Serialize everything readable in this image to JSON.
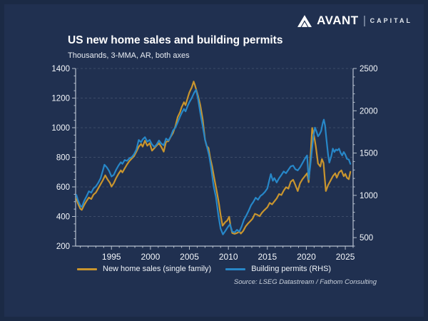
{
  "brand": {
    "name": "AVANT",
    "suffix": "CAPITAL"
  },
  "header": {
    "title": "US new home sales and building permits",
    "subtitle": "Thousands, 3-MMA, AR, both axes"
  },
  "footer": {
    "source": "Source: LSEG Datastream / Fathom Consulting"
  },
  "colors": {
    "background": "#203050",
    "gold": "#c9952e",
    "blue": "#2787c8",
    "axis": "#b6c0ce",
    "grid": "#56647e",
    "tick_text": "#f3f6fa"
  },
  "chart_data": {
    "type": "line",
    "title": "US new home sales and building permits",
    "subtitle": "Thousands, 3-MMA, AR, both axes",
    "source_note": "Source: LSEG Datastream / Fathom Consulting",
    "grid": "horizontal-dashed",
    "legend_position": "bottom",
    "x_axis": {
      "range": [
        1990.4,
        2026.0
      ],
      "label_ticks": [
        1995,
        2000,
        2005,
        2010,
        2015,
        2020,
        2025
      ],
      "minor_tick_every": 1
    },
    "left_axis": {
      "range": [
        200,
        1400
      ],
      "ticks": [
        200,
        400,
        600,
        800,
        1000,
        1200,
        1400
      ],
      "minor_tick_every": 50
    },
    "right_axis": {
      "range": [
        400,
        2500
      ],
      "ticks": [
        500,
        1000,
        1500,
        2000,
        2500
      ],
      "minor_tick_every": 100
    },
    "series": [
      {
        "name": "New home sales (single family)",
        "axis": "left",
        "color": "#c9952e",
        "points": [
          [
            1990.5,
            520
          ],
          [
            1990.7,
            487
          ],
          [
            1991.0,
            452
          ],
          [
            1991.2,
            445
          ],
          [
            1991.5,
            478
          ],
          [
            1991.8,
            505
          ],
          [
            1992.1,
            528
          ],
          [
            1992.4,
            518
          ],
          [
            1992.7,
            548
          ],
          [
            1993.0,
            562
          ],
          [
            1993.3,
            590
          ],
          [
            1993.6,
            618
          ],
          [
            1993.9,
            645
          ],
          [
            1994.2,
            678
          ],
          [
            1994.5,
            650
          ],
          [
            1994.8,
            628
          ],
          [
            1995.0,
            602
          ],
          [
            1995.3,
            625
          ],
          [
            1995.6,
            660
          ],
          [
            1995.9,
            688
          ],
          [
            1996.2,
            712
          ],
          [
            1996.4,
            698
          ],
          [
            1996.7,
            725
          ],
          [
            1997.0,
            752
          ],
          [
            1997.3,
            775
          ],
          [
            1997.6,
            792
          ],
          [
            1997.9,
            808
          ],
          [
            1998.2,
            838
          ],
          [
            1998.5,
            872
          ],
          [
            1998.8,
            890
          ],
          [
            1999.0,
            872
          ],
          [
            1999.3,
            912
          ],
          [
            1999.6,
            878
          ],
          [
            1999.9,
            895
          ],
          [
            2000.2,
            845
          ],
          [
            2000.5,
            862
          ],
          [
            2000.8,
            880
          ],
          [
            2001.1,
            895
          ],
          [
            2001.4,
            870
          ],
          [
            2001.7,
            838
          ],
          [
            2002.0,
            905
          ],
          [
            2002.3,
            908
          ],
          [
            2002.6,
            938
          ],
          [
            2002.9,
            965
          ],
          [
            2003.2,
            1010
          ],
          [
            2003.5,
            1072
          ],
          [
            2003.8,
            1105
          ],
          [
            2004.0,
            1138
          ],
          [
            2004.3,
            1172
          ],
          [
            2004.5,
            1152
          ],
          [
            2004.8,
            1205
          ],
          [
            2005.0,
            1238
          ],
          [
            2005.3,
            1272
          ],
          [
            2005.55,
            1312
          ],
          [
            2005.7,
            1288
          ],
          [
            2005.9,
            1252
          ],
          [
            2006.1,
            1215
          ],
          [
            2006.4,
            1152
          ],
          [
            2006.7,
            1058
          ],
          [
            2007.0,
            920
          ],
          [
            2007.2,
            878
          ],
          [
            2007.45,
            862
          ],
          [
            2007.7,
            788
          ],
          [
            2007.9,
            742
          ],
          [
            2008.2,
            655
          ],
          [
            2008.5,
            572
          ],
          [
            2008.8,
            482
          ],
          [
            2009.0,
            412
          ],
          [
            2009.25,
            338
          ],
          [
            2009.6,
            362
          ],
          [
            2009.85,
            372
          ],
          [
            2010.1,
            398
          ],
          [
            2010.3,
            330
          ],
          [
            2010.5,
            288
          ],
          [
            2010.8,
            283
          ],
          [
            2011.1,
            288
          ],
          [
            2011.4,
            298
          ],
          [
            2011.6,
            285
          ],
          [
            2011.9,
            302
          ],
          [
            2012.2,
            332
          ],
          [
            2012.5,
            352
          ],
          [
            2012.8,
            368
          ],
          [
            2013.1,
            385
          ],
          [
            2013.4,
            418
          ],
          [
            2013.7,
            412
          ],
          [
            2014.0,
            402
          ],
          [
            2014.3,
            425
          ],
          [
            2014.6,
            442
          ],
          [
            2015.0,
            462
          ],
          [
            2015.3,
            492
          ],
          [
            2015.6,
            482
          ],
          [
            2015.9,
            502
          ],
          [
            2016.2,
            522
          ],
          [
            2016.5,
            552
          ],
          [
            2016.8,
            545
          ],
          [
            2017.1,
            575
          ],
          [
            2017.4,
            598
          ],
          [
            2017.7,
            588
          ],
          [
            2018.0,
            635
          ],
          [
            2018.3,
            648
          ],
          [
            2018.6,
            612
          ],
          [
            2018.9,
            572
          ],
          [
            2019.2,
            625
          ],
          [
            2019.5,
            652
          ],
          [
            2019.8,
            672
          ],
          [
            2020.1,
            692
          ],
          [
            2020.3,
            632
          ],
          [
            2020.5,
            772
          ],
          [
            2020.75,
            998
          ],
          [
            2021.0,
            942
          ],
          [
            2021.2,
            878
          ],
          [
            2021.5,
            758
          ],
          [
            2021.8,
            738
          ],
          [
            2022.0,
            788
          ],
          [
            2022.2,
            762
          ],
          [
            2022.5,
            572
          ],
          [
            2022.8,
            612
          ],
          [
            2023.1,
            642
          ],
          [
            2023.4,
            672
          ],
          [
            2023.7,
            692
          ],
          [
            2023.9,
            662
          ],
          [
            2024.2,
            698
          ],
          [
            2024.5,
            712
          ],
          [
            2024.8,
            672
          ],
          [
            2025.0,
            688
          ],
          [
            2025.2,
            662
          ],
          [
            2025.45,
            652
          ],
          [
            2025.65,
            702
          ]
        ]
      },
      {
        "name": "Building permits (RHS)",
        "axis": "right",
        "color": "#2787c8",
        "points": [
          [
            1990.5,
            1005
          ],
          [
            1990.7,
            942
          ],
          [
            1991.0,
            878
          ],
          [
            1991.2,
            862
          ],
          [
            1991.5,
            935
          ],
          [
            1991.8,
            988
          ],
          [
            1992.1,
            1048
          ],
          [
            1992.4,
            1032
          ],
          [
            1992.7,
            1082
          ],
          [
            1993.0,
            1105
          ],
          [
            1993.3,
            1148
          ],
          [
            1993.6,
            1202
          ],
          [
            1993.9,
            1295
          ],
          [
            1994.1,
            1362
          ],
          [
            1994.4,
            1332
          ],
          [
            1994.7,
            1288
          ],
          [
            1995.0,
            1222
          ],
          [
            1995.3,
            1242
          ],
          [
            1995.6,
            1302
          ],
          [
            1995.9,
            1352
          ],
          [
            1996.2,
            1392
          ],
          [
            1996.4,
            1372
          ],
          [
            1996.7,
            1418
          ],
          [
            1997.0,
            1408
          ],
          [
            1997.3,
            1438
          ],
          [
            1997.6,
            1452
          ],
          [
            1997.9,
            1488
          ],
          [
            1998.2,
            1542
          ],
          [
            1998.5,
            1655
          ],
          [
            1998.8,
            1628
          ],
          [
            1999.0,
            1662
          ],
          [
            1999.3,
            1688
          ],
          [
            1999.6,
            1635
          ],
          [
            1999.9,
            1655
          ],
          [
            2000.2,
            1602
          ],
          [
            2000.5,
            1572
          ],
          [
            2000.8,
            1602
          ],
          [
            2001.1,
            1648
          ],
          [
            2001.4,
            1612
          ],
          [
            2001.7,
            1592
          ],
          [
            2002.0,
            1672
          ],
          [
            2002.3,
            1648
          ],
          [
            2002.6,
            1695
          ],
          [
            2002.9,
            1768
          ],
          [
            2003.2,
            1802
          ],
          [
            2003.5,
            1862
          ],
          [
            2003.8,
            1932
          ],
          [
            2004.0,
            1972
          ],
          [
            2004.3,
            2022
          ],
          [
            2004.5,
            1992
          ],
          [
            2004.8,
            2062
          ],
          [
            2005.0,
            2102
          ],
          [
            2005.3,
            2152
          ],
          [
            2005.6,
            2212
          ],
          [
            2005.85,
            2248
          ],
          [
            2006.1,
            2142
          ],
          [
            2006.4,
            1975
          ],
          [
            2006.7,
            1822
          ],
          [
            2007.0,
            1658
          ],
          [
            2007.2,
            1592
          ],
          [
            2007.5,
            1482
          ],
          [
            2007.8,
            1322
          ],
          [
            2008.1,
            1112
          ],
          [
            2008.4,
            982
          ],
          [
            2008.7,
            772
          ],
          [
            2009.0,
            608
          ],
          [
            2009.3,
            538
          ],
          [
            2009.6,
            578
          ],
          [
            2009.9,
            622
          ],
          [
            2010.2,
            658
          ],
          [
            2010.5,
            572
          ],
          [
            2010.8,
            562
          ],
          [
            2011.1,
            592
          ],
          [
            2011.4,
            572
          ],
          [
            2011.7,
            632
          ],
          [
            2012.0,
            712
          ],
          [
            2012.3,
            762
          ],
          [
            2012.6,
            818
          ],
          [
            2012.9,
            882
          ],
          [
            2013.2,
            922
          ],
          [
            2013.5,
            972
          ],
          [
            2013.8,
            948
          ],
          [
            2014.1,
            992
          ],
          [
            2014.4,
            1012
          ],
          [
            2014.7,
            1042
          ],
          [
            2015.0,
            1082
          ],
          [
            2015.25,
            1178
          ],
          [
            2015.45,
            1252
          ],
          [
            2015.7,
            1172
          ],
          [
            2015.9,
            1205
          ],
          [
            2016.2,
            1152
          ],
          [
            2016.5,
            1202
          ],
          [
            2016.8,
            1242
          ],
          [
            2017.1,
            1282
          ],
          [
            2017.4,
            1262
          ],
          [
            2017.7,
            1302
          ],
          [
            2018.0,
            1342
          ],
          [
            2018.3,
            1352
          ],
          [
            2018.6,
            1308
          ],
          [
            2018.9,
            1295
          ],
          [
            2019.2,
            1332
          ],
          [
            2019.5,
            1382
          ],
          [
            2019.8,
            1432
          ],
          [
            2020.1,
            1472
          ],
          [
            2020.3,
            1188
          ],
          [
            2020.5,
            1342
          ],
          [
            2020.7,
            1522
          ],
          [
            2020.9,
            1692
          ],
          [
            2021.1,
            1802
          ],
          [
            2021.3,
            1758
          ],
          [
            2021.5,
            1698
          ],
          [
            2021.7,
            1722
          ],
          [
            2021.9,
            1762
          ],
          [
            2022.1,
            1852
          ],
          [
            2022.25,
            1895
          ],
          [
            2022.4,
            1825
          ],
          [
            2022.6,
            1648
          ],
          [
            2022.8,
            1478
          ],
          [
            2022.95,
            1388
          ],
          [
            2023.2,
            1462
          ],
          [
            2023.4,
            1552
          ],
          [
            2023.6,
            1512
          ],
          [
            2023.8,
            1542
          ],
          [
            2024.0,
            1532
          ],
          [
            2024.2,
            1552
          ],
          [
            2024.4,
            1502
          ],
          [
            2024.6,
            1472
          ],
          [
            2024.8,
            1512
          ],
          [
            2025.0,
            1482
          ],
          [
            2025.2,
            1432
          ],
          [
            2025.45,
            1422
          ],
          [
            2025.65,
            1372
          ]
        ]
      }
    ]
  }
}
